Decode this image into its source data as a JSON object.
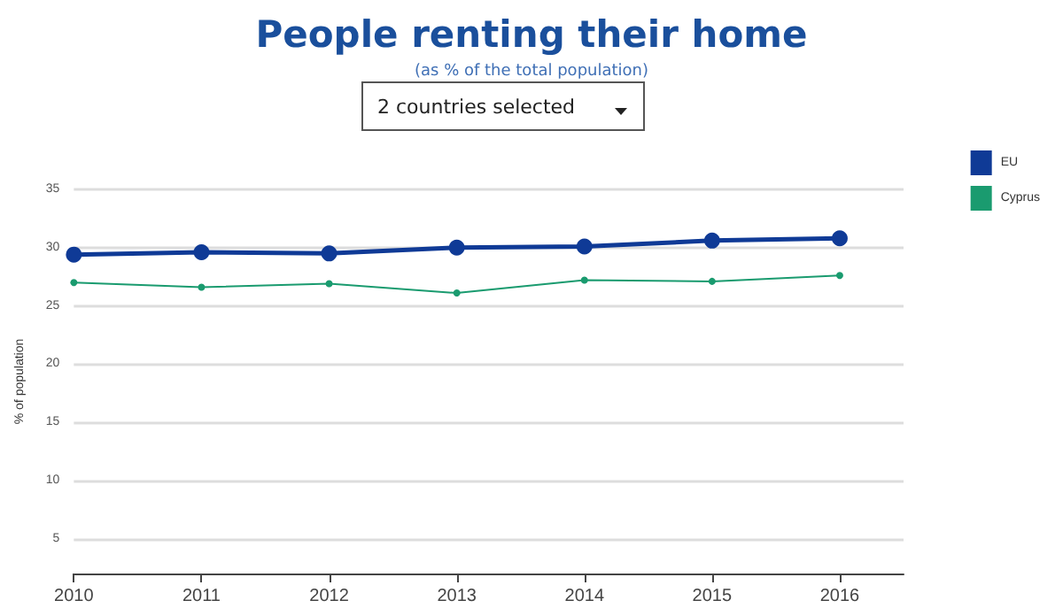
{
  "chart_data": {
    "type": "line",
    "title": "People renting their home",
    "subtitle": "(as % of the total population)",
    "ylabel": "% of population",
    "annotations": [
      "2 countries selected"
    ],
    "x": [
      2010,
      2011,
      2012,
      2013,
      2014,
      2015,
      2016
    ],
    "series": [
      {
        "name": "EU",
        "color": "#0f3a96",
        "values": [
          29.4,
          29.6,
          29.5,
          30.0,
          30.1,
          30.6,
          30.8
        ]
      },
      {
        "name": "Cyprus",
        "color": "#1a9b6f",
        "values": [
          27.0,
          26.6,
          26.9,
          26.1,
          27.2,
          27.1,
          27.6
        ]
      }
    ],
    "xlim": [
      2010,
      2016.5
    ],
    "xticks": [
      2010,
      2011,
      2012,
      2013,
      2014,
      2015,
      2016
    ],
    "ylim": [
      2,
      35
    ],
    "yticks": [
      5,
      10,
      15,
      20,
      25,
      30,
      35
    ],
    "grid": "y",
    "legend": "top right",
    "marker": "circle",
    "line_style": "solid"
  }
}
